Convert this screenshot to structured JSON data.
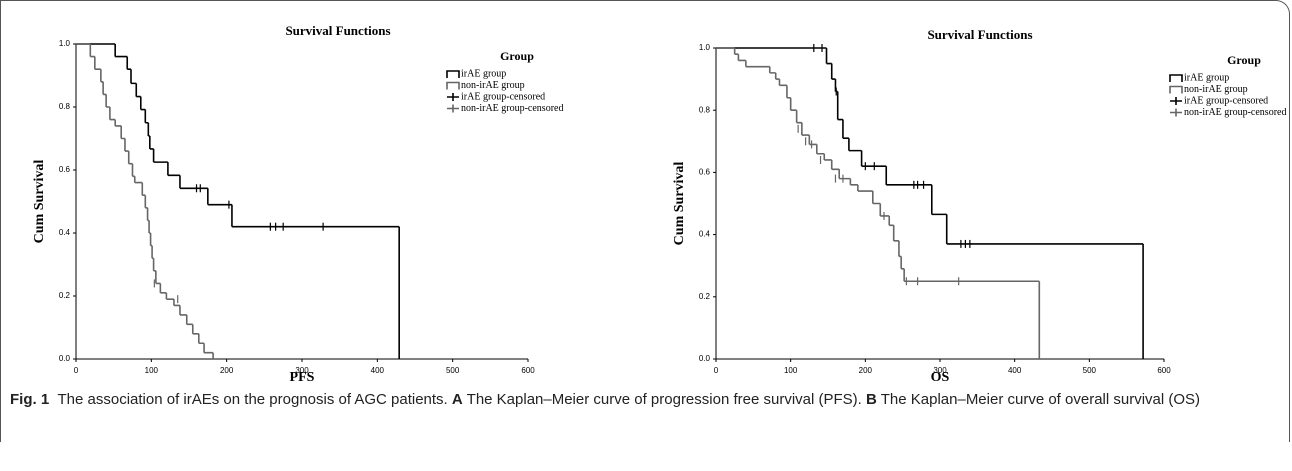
{
  "chart_data": [
    {
      "type": "step",
      "title": "Survival Functions",
      "x_label": "PFS",
      "y_label": "Cum Survival",
      "legend_title": "Group",
      "xlim": [
        0,
        600
      ],
      "xticks": [
        0,
        100,
        200,
        300,
        400,
        500,
        600
      ],
      "ylim": [
        0,
        1
      ],
      "yticks": [
        {
          "value": 0,
          "label": "0.0"
        },
        0.2,
        0.4,
        0.6,
        0.8,
        {
          "value": 1,
          "label": "1.0"
        }
      ],
      "series": [
        {
          "name": "irAE group",
          "color": "#000000",
          "marker": "line",
          "x": [
            0,
            52,
            68,
            73,
            80,
            86,
            92,
            96,
            98,
            103,
            122,
            138,
            175,
            207,
            429
          ],
          "values": [
            1,
            0.96,
            0.92,
            0.875,
            0.833,
            0.792,
            0.75,
            0.708,
            0.667,
            0.625,
            0.583,
            0.542,
            0.49,
            0.42,
            0
          ]
        },
        {
          "name": "non-irAE group",
          "color": "#666666",
          "marker": "line",
          "x": [
            0,
            19,
            25,
            33,
            36,
            40,
            45,
            52,
            60,
            65,
            70,
            75,
            78,
            88,
            92,
            95,
            97,
            99,
            101,
            103,
            106,
            112,
            120,
            130,
            138,
            147,
            155,
            163,
            170,
            182
          ],
          "values": [
            1,
            0.96,
            0.92,
            0.88,
            0.84,
            0.8,
            0.76,
            0.74,
            0.7,
            0.66,
            0.62,
            0.58,
            0.56,
            0.52,
            0.48,
            0.44,
            0.4,
            0.36,
            0.32,
            0.28,
            0.24,
            0.21,
            0.19,
            0.17,
            0.14,
            0.11,
            0.08,
            0.05,
            0.02,
            0
          ]
        },
        {
          "name": "irAE group-censored",
          "color": "#000000",
          "marker": "plus",
          "x": [
            160,
            165,
            203,
            258,
            265,
            275,
            328
          ],
          "values": [
            0.542,
            0.542,
            0.49,
            0.42,
            0.42,
            0.42,
            0.42
          ]
        },
        {
          "name": "non-irAE group-censored",
          "color": "#666666",
          "marker": "plus",
          "x": [
            104,
            135
          ],
          "values": [
            0.24,
            0.19
          ]
        }
      ]
    },
    {
      "type": "step",
      "title": "Survival Functions",
      "x_label": "OS",
      "y_label": "Cum Survival",
      "legend_title": "Group",
      "xlim": [
        0,
        600
      ],
      "xticks": [
        0,
        100,
        200,
        300,
        400,
        500,
        600
      ],
      "ylim": [
        0,
        1
      ],
      "yticks": [
        {
          "value": 0,
          "label": "0.0"
        },
        0.2,
        0.4,
        0.6,
        0.8,
        {
          "value": 1,
          "label": "1.0"
        }
      ],
      "series": [
        {
          "name": "irAE group",
          "color": "#000000",
          "marker": "line",
          "x": [
            0,
            148,
            155,
            160,
            163,
            170,
            178,
            195,
            228,
            289,
            309,
            572
          ],
          "values": [
            1,
            0.95,
            0.9,
            0.86,
            0.77,
            0.71,
            0.67,
            0.62,
            0.56,
            0.465,
            0.37,
            0
          ]
        },
        {
          "name": "non-irAE group",
          "color": "#666666",
          "marker": "line",
          "x": [
            0,
            25,
            30,
            40,
            72,
            80,
            85,
            95,
            100,
            108,
            115,
            125,
            135,
            145,
            155,
            165,
            180,
            190,
            210,
            220,
            232,
            238,
            245,
            248,
            252,
            433
          ],
          "values": [
            1,
            0.98,
            0.96,
            0.94,
            0.92,
            0.9,
            0.88,
            0.84,
            0.8,
            0.76,
            0.72,
            0.69,
            0.66,
            0.64,
            0.61,
            0.58,
            0.56,
            0.54,
            0.5,
            0.46,
            0.43,
            0.38,
            0.33,
            0.29,
            0.25,
            0
          ]
        },
        {
          "name": "irAE group-censored",
          "color": "#000000",
          "marker": "plus",
          "x": [
            131,
            142,
            161,
            200,
            212,
            265,
            270,
            278,
            328,
            334,
            340
          ],
          "values": [
            1,
            1,
            0.86,
            0.62,
            0.62,
            0.56,
            0.56,
            0.56,
            0.37,
            0.37,
            0.37
          ]
        },
        {
          "name": "non-irAE group-censored",
          "color": "#666666",
          "marker": "plus",
          "x": [
            100,
            110,
            120,
            128,
            140,
            160,
            170,
            225,
            255,
            270,
            325
          ],
          "values": [
            0.82,
            0.74,
            0.7,
            0.69,
            0.64,
            0.58,
            0.58,
            0.46,
            0.25,
            0.25,
            0.25
          ]
        }
      ]
    }
  ],
  "caption": {
    "label": "Fig. 1",
    "intro": "The association of irAEs on the prognosis of AGC patients.",
    "parts": [
      {
        "letter": "A",
        "text": "The Kaplan–Meier curve of progression free survival (PFS)."
      },
      {
        "letter": "B",
        "text": "The Kaplan–Meier curve of overall survival (OS)"
      }
    ]
  }
}
